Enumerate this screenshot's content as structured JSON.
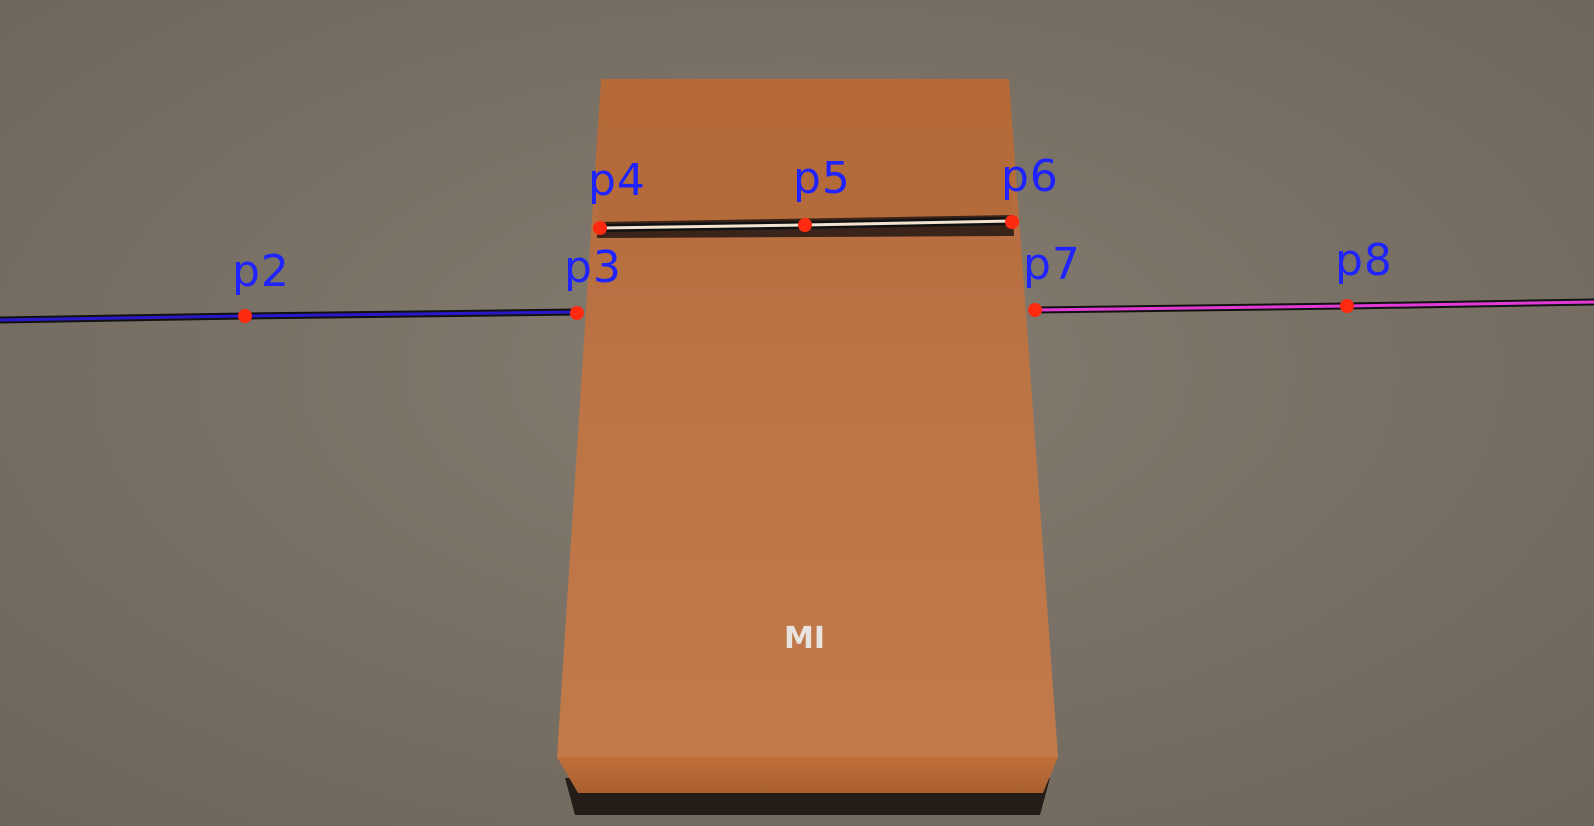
{
  "scene": {
    "description_colors": {
      "floor": "#7a7164",
      "box_face": "#bb7040",
      "box_top": "#b86c3c",
      "line_left": "#2a18c8",
      "line_center": "#f2e3d0",
      "line_right": "#e23ad6",
      "point": "#ff2a10",
      "label": "#1f23ff"
    },
    "box_logo": "MI"
  },
  "points": [
    {
      "id": "p2",
      "label": "p2"
    },
    {
      "id": "p3",
      "label": "p3"
    },
    {
      "id": "p4",
      "label": "p4"
    },
    {
      "id": "p5",
      "label": "p5"
    },
    {
      "id": "p6",
      "label": "p6"
    },
    {
      "id": "p7",
      "label": "p7"
    },
    {
      "id": "p8",
      "label": "p8"
    }
  ]
}
